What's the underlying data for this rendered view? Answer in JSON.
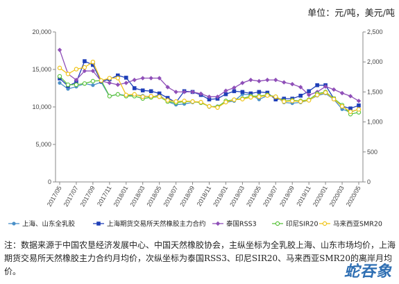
{
  "unit_label": "单位：元/吨，美元/吨",
  "note": "注：数据来源于中国农垦经济发展中心、中国天然橡胶协会，主纵坐标为全乳胶上海、山东市场均价，上海期货交易所天然橡胶主力合约月均价，次纵坐标为泰国RSS3、印尼SIR20、马来西亚SMR20的离岸月均价。",
  "watermark": "蛇吞象",
  "chart_data": {
    "type": "line",
    "x": [
      "2017/05",
      "2017/06",
      "2017/07",
      "2017/08",
      "2017/09",
      "2017/10",
      "2017/11",
      "2017/12",
      "2018/01",
      "2018/02",
      "2018/03",
      "2018/04",
      "2018/05",
      "2018/06",
      "2018/07",
      "2018/08",
      "2018/09",
      "2018/10",
      "2018/11",
      "2018/12",
      "2019/01",
      "2019/02",
      "2019/03",
      "2019/04",
      "2019/05",
      "2019/06",
      "2019/07",
      "2019/08",
      "2019/09",
      "2019/10",
      "2019/11",
      "2019/12",
      "2020/01",
      "2020/02",
      "2020/03",
      "2020/04",
      "2020/05"
    ],
    "x_tick_labels": [
      "2017/05",
      "2017/07",
      "2017/09",
      "2017/11",
      "2018/01",
      "2018/03",
      "2018/05",
      "2018/07",
      "2018/09",
      "2018/11",
      "2019/01",
      "2019/03",
      "2019/05",
      "2019/07",
      "2019/09",
      "2019/11",
      "2020/01",
      "2020/03",
      "2020/05"
    ],
    "y_left": {
      "min": 0,
      "max": 20000,
      "ticks": [
        "0",
        "5,000",
        "10,000",
        "15,000",
        "20,000"
      ],
      "tick_values": [
        0,
        5000,
        10000,
        15000,
        20000
      ]
    },
    "y_right": {
      "min": 0,
      "max": 2500,
      "ticks": [
        "0",
        "500",
        "1,000",
        "1,500",
        "2,000",
        "2,500"
      ],
      "tick_values": [
        0,
        500,
        1000,
        1500,
        2000,
        2500
      ]
    },
    "grid": false,
    "legend_position": "bottom",
    "series": [
      {
        "name": "上海、山东全乳胶",
        "axis": "left",
        "color": "#4a90c8",
        "marker": "circle",
        "values": [
          13200,
          12400,
          12700,
          13100,
          12900,
          13300,
          11400,
          11700,
          11500,
          11600,
          11500,
          11300,
          11600,
          10700,
          10300,
          10400,
          10600,
          10700,
          10000,
          10100,
          10600,
          10800,
          11700,
          11600,
          11000,
          11500,
          11400,
          10600,
          10500,
          10600,
          10900,
          11500,
          11800,
          11000,
          9700,
          9300,
          9700
        ]
      },
      {
        "name": "上海期货交易所天然橡胶主力合约",
        "axis": "left",
        "color": "#1f3fb8",
        "marker": "square",
        "values": [
          13800,
          12800,
          13300,
          16100,
          15600,
          13400,
          13700,
          14200,
          13900,
          12500,
          12200,
          12100,
          11800,
          11200,
          10600,
          12100,
          12000,
          11600,
          11000,
          11100,
          11700,
          12100,
          12000,
          11800,
          12000,
          11900,
          11000,
          11100,
          11100,
          11500,
          12100,
          12900,
          12900,
          11100,
          10100,
          9800,
          10200
        ]
      },
      {
        "name": "泰国RSS3",
        "axis": "right",
        "color": "#8f4fb8",
        "marker": "diamond",
        "values": [
          2200,
          1800,
          1700,
          1850,
          1850,
          1680,
          1650,
          1620,
          1650,
          1700,
          1730,
          1730,
          1730,
          1580,
          1500,
          1500,
          1500,
          1470,
          1420,
          1420,
          1520,
          1570,
          1650,
          1700,
          1680,
          1700,
          1700,
          1660,
          1630,
          1580,
          1450,
          1500,
          1590,
          1540,
          1480,
          1430,
          1350
        ]
      },
      {
        "name": "印尼SIR20",
        "axis": "right",
        "color": "#5cc43e",
        "marker": "circle-open",
        "values": [
          1760,
          1620,
          1620,
          1640,
          1680,
          1690,
          1430,
          1460,
          1430,
          1430,
          1390,
          1410,
          1420,
          1340,
          1320,
          1340,
          1340,
          1320,
          1260,
          1250,
          1350,
          1370,
          1390,
          1430,
          1430,
          1450,
          1420,
          1350,
          1360,
          1350,
          1370,
          1470,
          1500,
          1390,
          1280,
          1130,
          1160
        ]
      },
      {
        "name": "马来西亚SMR20",
        "axis": "right",
        "color": "#f0c419",
        "marker": "circle-open",
        "values": [
          1900,
          1800,
          1880,
          1910,
          2000,
          1690,
          1730,
          1730,
          1450,
          1460,
          1420,
          1430,
          1420,
          1360,
          1340,
          1350,
          1340,
          1330,
          1260,
          1240,
          1330,
          1370,
          1380,
          1410,
          1420,
          1440,
          1420,
          1340,
          1350,
          1340,
          1360,
          1450,
          1490,
          1380,
          1260,
          1170,
          1210
        ]
      }
    ]
  }
}
